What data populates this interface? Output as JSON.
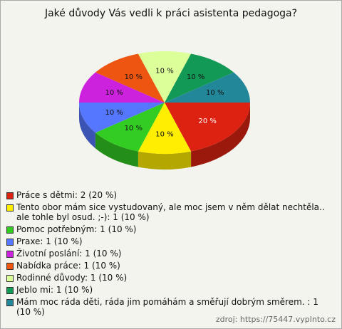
{
  "chart_data": {
    "type": "pie",
    "title": "Jaké důvody Vás vedli k práci asistenta pedagoga?",
    "categories": [
      "Práce s dětmi: 2 (20 %)",
      "Tento obor mám sice vystudovaný, ale moc jsem v něm dělat nechtěla.. ale tohle byl osud. ;-): 1 (10 %)",
      "Pomoc potřebným: 1 (10 %)",
      "Praxe: 1 (10 %)",
      "Životní poslání: 1 (10 %)",
      "Nabídka práce: 1 (10 %)",
      "Rodinné důvody: 1 (10 %)",
      "Jeblo mi: 1 (10 %)",
      "Mám moc ráda děti, ráda jim pomáhám a směřují dobrým směrem. : 1 (10 %)"
    ],
    "values": [
      20,
      10,
      10,
      10,
      10,
      10,
      10,
      10,
      10
    ],
    "value_labels": [
      "20 %",
      "10 %",
      "10 %",
      "10 %",
      "10 %",
      "10 %",
      "10 %",
      "10 %",
      "10 %"
    ],
    "colors": [
      "#dd2211",
      "#ffee00",
      "#33cc22",
      "#5577ff",
      "#cc22dd",
      "#ee5511",
      "#ddff99",
      "#119955",
      "#228899"
    ],
    "source": "zdroj: https://75447.vyplnto.cz"
  }
}
